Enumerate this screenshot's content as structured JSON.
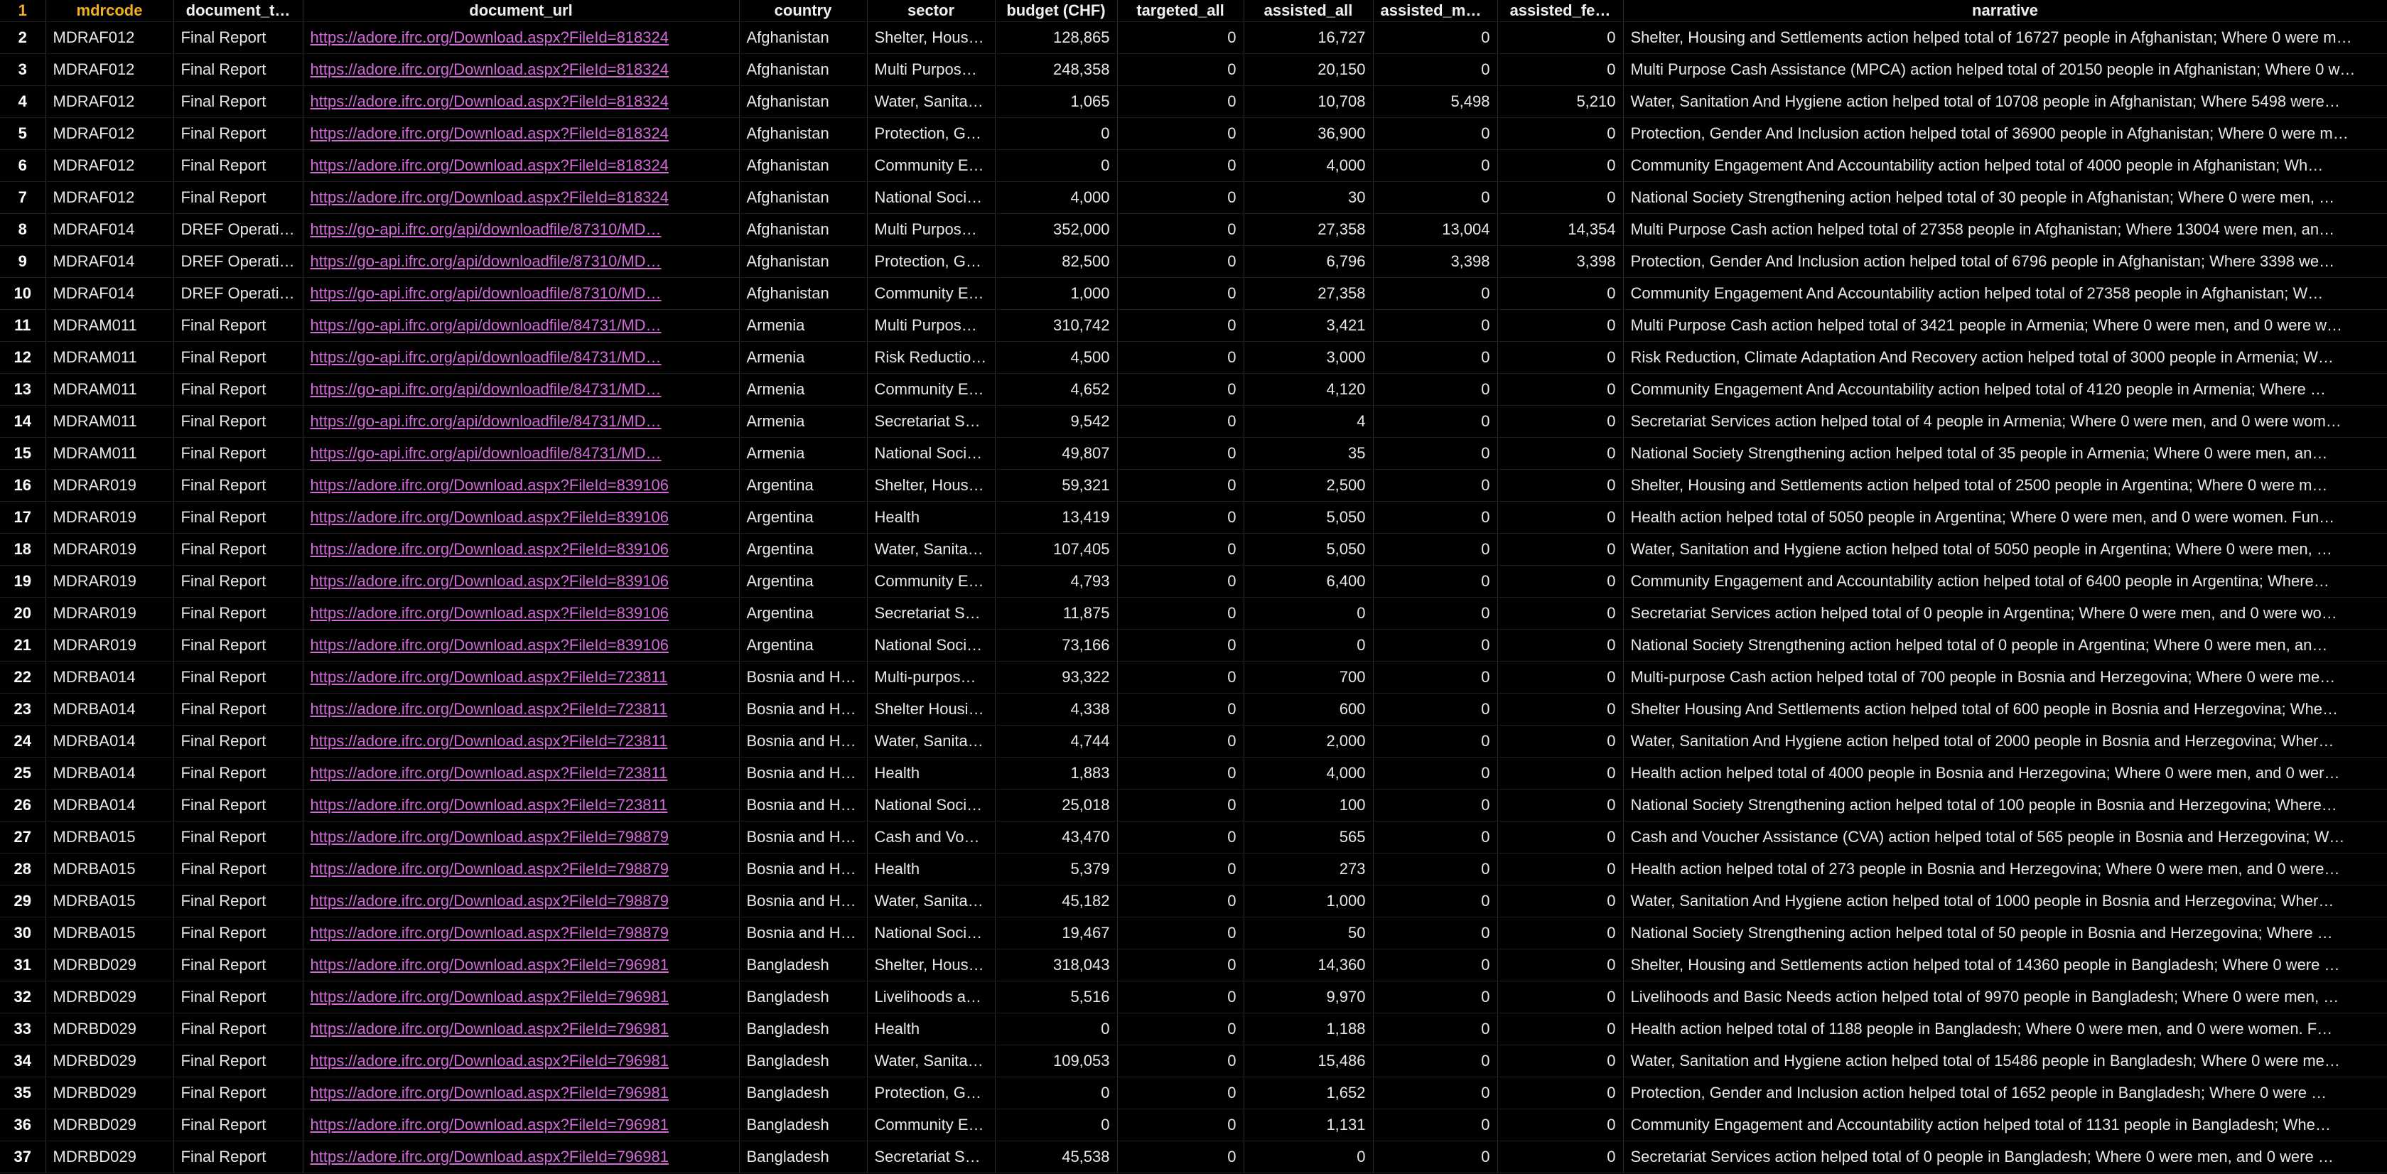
{
  "columns": [
    {
      "key": "rownum",
      "label": "1",
      "cls": "rownum"
    },
    {
      "key": "mdrcode",
      "label": "mdrcode",
      "cls": "c1"
    },
    {
      "key": "document_type",
      "label": "document_t…",
      "cls": ""
    },
    {
      "key": "document_url",
      "label": "document_url",
      "cls": "link"
    },
    {
      "key": "country",
      "label": "country",
      "cls": ""
    },
    {
      "key": "sector",
      "label": "sector",
      "cls": ""
    },
    {
      "key": "budget",
      "label": "budget (CHF)",
      "cls": "num"
    },
    {
      "key": "targeted_all",
      "label": "targeted_all",
      "cls": "num"
    },
    {
      "key": "assisted_all",
      "label": "assisted_all",
      "cls": "num"
    },
    {
      "key": "assisted_male",
      "label": "assisted_ma…",
      "cls": "num"
    },
    {
      "key": "assisted_female",
      "label": "assisted_fe…",
      "cls": "num"
    },
    {
      "key": "narrative",
      "label": "narrative",
      "cls": ""
    }
  ],
  "rows": [
    [
      "2",
      "MDRAF012",
      "Final Report",
      "https://adore.ifrc.org/Download.aspx?FileId=818324",
      "Afghanistan",
      "Shelter, Hous…",
      "128,865",
      "0",
      "16,727",
      "0",
      "0",
      "Shelter, Housing and Settlements action helped total of 16727 people in Afghanistan; Where 0 were m…"
    ],
    [
      "3",
      "MDRAF012",
      "Final Report",
      "https://adore.ifrc.org/Download.aspx?FileId=818324",
      "Afghanistan",
      "Multi Purpos…",
      "248,358",
      "0",
      "20,150",
      "0",
      "0",
      "Multi Purpose Cash Assistance (MPCA) action helped total of 20150 people in Afghanistan; Where 0 w…"
    ],
    [
      "4",
      "MDRAF012",
      "Final Report",
      "https://adore.ifrc.org/Download.aspx?FileId=818324",
      "Afghanistan",
      "Water, Sanita…",
      "1,065",
      "0",
      "10,708",
      "5,498",
      "5,210",
      "Water, Sanitation And Hygiene action helped total of 10708 people in Afghanistan; Where 5498 were…"
    ],
    [
      "5",
      "MDRAF012",
      "Final Report",
      "https://adore.ifrc.org/Download.aspx?FileId=818324",
      "Afghanistan",
      "Protection, G…",
      "0",
      "0",
      "36,900",
      "0",
      "0",
      "Protection, Gender And Inclusion action helped total of 36900 people in Afghanistan; Where 0 were m…"
    ],
    [
      "6",
      "MDRAF012",
      "Final Report",
      "https://adore.ifrc.org/Download.aspx?FileId=818324",
      "Afghanistan",
      "Community E…",
      "0",
      "0",
      "4,000",
      "0",
      "0",
      "Community Engagement And Accountability action helped total of 4000 people in Afghanistan; Wh…"
    ],
    [
      "7",
      "MDRAF012",
      "Final Report",
      "https://adore.ifrc.org/Download.aspx?FileId=818324",
      "Afghanistan",
      "National Soci…",
      "4,000",
      "0",
      "30",
      "0",
      "0",
      "National Society Strengthening action helped total of 30 people in Afghanistan; Where 0 were men, …"
    ],
    [
      "8",
      "MDRAF014",
      "DREF Operati…",
      "https://go-api.ifrc.org/api/downloadfile/87310/MD…",
      "Afghanistan",
      "Multi Purpos…",
      "352,000",
      "0",
      "27,358",
      "13,004",
      "14,354",
      "Multi Purpose Cash action helped total of 27358 people in Afghanistan; Where 13004 were men, an…"
    ],
    [
      "9",
      "MDRAF014",
      "DREF Operati…",
      "https://go-api.ifrc.org/api/downloadfile/87310/MD…",
      "Afghanistan",
      "Protection, G…",
      "82,500",
      "0",
      "6,796",
      "3,398",
      "3,398",
      "Protection, Gender And Inclusion action helped total of 6796 people in Afghanistan; Where 3398 we…"
    ],
    [
      "10",
      "MDRAF014",
      "DREF Operati…",
      "https://go-api.ifrc.org/api/downloadfile/87310/MD…",
      "Afghanistan",
      "Community E…",
      "1,000",
      "0",
      "27,358",
      "0",
      "0",
      "Community Engagement And Accountability action helped total of 27358 people in Afghanistan; W…"
    ],
    [
      "11",
      "MDRAM011",
      "Final Report",
      "https://go-api.ifrc.org/api/downloadfile/84731/MD…",
      "Armenia",
      "Multi Purpos…",
      "310,742",
      "0",
      "3,421",
      "0",
      "0",
      "Multi Purpose Cash action helped total of 3421 people in Armenia; Where 0 were men, and 0 were w…"
    ],
    [
      "12",
      "MDRAM011",
      "Final Report",
      "https://go-api.ifrc.org/api/downloadfile/84731/MD…",
      "Armenia",
      "Risk Reductio…",
      "4,500",
      "0",
      "3,000",
      "0",
      "0",
      "Risk Reduction, Climate Adaptation And Recovery action helped total of 3000 people in Armenia; W…"
    ],
    [
      "13",
      "MDRAM011",
      "Final Report",
      "https://go-api.ifrc.org/api/downloadfile/84731/MD…",
      "Armenia",
      "Community E…",
      "4,652",
      "0",
      "4,120",
      "0",
      "0",
      "Community Engagement And Accountability action helped total of 4120 people in Armenia; Where …"
    ],
    [
      "14",
      "MDRAM011",
      "Final Report",
      "https://go-api.ifrc.org/api/downloadfile/84731/MD…",
      "Armenia",
      "Secretariat S…",
      "9,542",
      "0",
      "4",
      "0",
      "0",
      "Secretariat Services action helped total of 4 people in Armenia; Where 0 were men, and 0 were wom…"
    ],
    [
      "15",
      "MDRAM011",
      "Final Report",
      "https://go-api.ifrc.org/api/downloadfile/84731/MD…",
      "Armenia",
      "National Soci…",
      "49,807",
      "0",
      "35",
      "0",
      "0",
      "National Society Strengthening action helped total of 35 people in Armenia; Where 0 were men, an…"
    ],
    [
      "16",
      "MDRAR019",
      "Final Report",
      "https://adore.ifrc.org/Download.aspx?FileId=839106",
      "Argentina",
      "Shelter, Hous…",
      "59,321",
      "0",
      "2,500",
      "0",
      "0",
      "Shelter, Housing and Settlements action helped total of 2500 people in Argentina; Where 0 were m…"
    ],
    [
      "17",
      "MDRAR019",
      "Final Report",
      "https://adore.ifrc.org/Download.aspx?FileId=839106",
      "Argentina",
      "Health",
      "13,419",
      "0",
      "5,050",
      "0",
      "0",
      "Health action helped total of 5050 people in Argentina; Where 0 were men, and 0 were women. Fun…"
    ],
    [
      "18",
      "MDRAR019",
      "Final Report",
      "https://adore.ifrc.org/Download.aspx?FileId=839106",
      "Argentina",
      "Water, Sanita…",
      "107,405",
      "0",
      "5,050",
      "0",
      "0",
      "Water, Sanitation and Hygiene action helped total of 5050 people in Argentina; Where 0 were men, …"
    ],
    [
      "19",
      "MDRAR019",
      "Final Report",
      "https://adore.ifrc.org/Download.aspx?FileId=839106",
      "Argentina",
      "Community E…",
      "4,793",
      "0",
      "6,400",
      "0",
      "0",
      "Community Engagement and Accountability action helped total of 6400 people in Argentina; Where…"
    ],
    [
      "20",
      "MDRAR019",
      "Final Report",
      "https://adore.ifrc.org/Download.aspx?FileId=839106",
      "Argentina",
      "Secretariat S…",
      "11,875",
      "0",
      "0",
      "0",
      "0",
      "Secretariat Services action helped total of 0 people in Argentina; Where 0 were men, and 0 were wo…"
    ],
    [
      "21",
      "MDRAR019",
      "Final Report",
      "https://adore.ifrc.org/Download.aspx?FileId=839106",
      "Argentina",
      "National Soci…",
      "73,166",
      "0",
      "0",
      "0",
      "0",
      "National Society Strengthening action helped total of 0 people in Argentina; Where 0 were men, an…"
    ],
    [
      "22",
      "MDRBA014",
      "Final Report",
      "https://adore.ifrc.org/Download.aspx?FileId=723811",
      "Bosnia and H…",
      "Multi-purpos…",
      "93,322",
      "0",
      "700",
      "0",
      "0",
      "Multi-purpose Cash action helped total of 700 people in Bosnia and Herzegovina; Where 0 were me…"
    ],
    [
      "23",
      "MDRBA014",
      "Final Report",
      "https://adore.ifrc.org/Download.aspx?FileId=723811",
      "Bosnia and H…",
      "Shelter Housi…",
      "4,338",
      "0",
      "600",
      "0",
      "0",
      "Shelter Housing And Settlements action helped total of 600 people in Bosnia and Herzegovina; Whe…"
    ],
    [
      "24",
      "MDRBA014",
      "Final Report",
      "https://adore.ifrc.org/Download.aspx?FileId=723811",
      "Bosnia and H…",
      "Water, Sanita…",
      "4,744",
      "0",
      "2,000",
      "0",
      "0",
      "Water, Sanitation And Hygiene action helped total of 2000 people in Bosnia and Herzegovina; Wher…"
    ],
    [
      "25",
      "MDRBA014",
      "Final Report",
      "https://adore.ifrc.org/Download.aspx?FileId=723811",
      "Bosnia and H…",
      "Health",
      "1,883",
      "0",
      "4,000",
      "0",
      "0",
      "Health action helped total of 4000 people in Bosnia and Herzegovina; Where 0 were men, and 0 wer…"
    ],
    [
      "26",
      "MDRBA014",
      "Final Report",
      "https://adore.ifrc.org/Download.aspx?FileId=723811",
      "Bosnia and H…",
      "National Soci…",
      "25,018",
      "0",
      "100",
      "0",
      "0",
      "National Society Strengthening action helped total of 100 people in Bosnia and Herzegovina; Where…"
    ],
    [
      "27",
      "MDRBA015",
      "Final Report",
      "https://adore.ifrc.org/Download.aspx?FileId=798879",
      "Bosnia and H…",
      "Cash and Vo…",
      "43,470",
      "0",
      "565",
      "0",
      "0",
      "Cash and Voucher Assistance (CVA) action helped total of 565 people in Bosnia and Herzegovina; W…"
    ],
    [
      "28",
      "MDRBA015",
      "Final Report",
      "https://adore.ifrc.org/Download.aspx?FileId=798879",
      "Bosnia and H…",
      "Health",
      "5,379",
      "0",
      "273",
      "0",
      "0",
      "Health action helped total of 273 people in Bosnia and Herzegovina; Where 0 were men, and 0 were…"
    ],
    [
      "29",
      "MDRBA015",
      "Final Report",
      "https://adore.ifrc.org/Download.aspx?FileId=798879",
      "Bosnia and H…",
      "Water, Sanita…",
      "45,182",
      "0",
      "1,000",
      "0",
      "0",
      "Water, Sanitation And Hygiene action helped total of 1000 people in Bosnia and Herzegovina; Wher…"
    ],
    [
      "30",
      "MDRBA015",
      "Final Report",
      "https://adore.ifrc.org/Download.aspx?FileId=798879",
      "Bosnia and H…",
      "National Soci…",
      "19,467",
      "0",
      "50",
      "0",
      "0",
      "National Society Strengthening action helped total of 50 people in Bosnia and Herzegovina; Where …"
    ],
    [
      "31",
      "MDRBD029",
      "Final Report",
      "https://adore.ifrc.org/Download.aspx?FileId=796981",
      "Bangladesh",
      "Shelter, Hous…",
      "318,043",
      "0",
      "14,360",
      "0",
      "0",
      "Shelter, Housing and Settlements action helped total of 14360 people in Bangladesh; Where 0 were …"
    ],
    [
      "32",
      "MDRBD029",
      "Final Report",
      "https://adore.ifrc.org/Download.aspx?FileId=796981",
      "Bangladesh",
      "Livelihoods a…",
      "5,516",
      "0",
      "9,970",
      "0",
      "0",
      "Livelihoods and Basic Needs action helped total of 9970 people in Bangladesh; Where 0 were men, …"
    ],
    [
      "33",
      "MDRBD029",
      "Final Report",
      "https://adore.ifrc.org/Download.aspx?FileId=796981",
      "Bangladesh",
      "Health",
      "0",
      "0",
      "1,188",
      "0",
      "0",
      "Health action helped total of 1188 people in Bangladesh; Where 0 were men, and 0 were women. F…"
    ],
    [
      "34",
      "MDRBD029",
      "Final Report",
      "https://adore.ifrc.org/Download.aspx?FileId=796981",
      "Bangladesh",
      "Water, Sanita…",
      "109,053",
      "0",
      "15,486",
      "0",
      "0",
      "Water, Sanitation and Hygiene action helped total of 15486 people in Bangladesh; Where 0 were me…"
    ],
    [
      "35",
      "MDRBD029",
      "Final Report",
      "https://adore.ifrc.org/Download.aspx?FileId=796981",
      "Bangladesh",
      "Protection, G…",
      "0",
      "0",
      "1,652",
      "0",
      "0",
      "Protection, Gender and Inclusion action helped total of 1652 people in Bangladesh; Where 0 were …"
    ],
    [
      "36",
      "MDRBD029",
      "Final Report",
      "https://adore.ifrc.org/Download.aspx?FileId=796981",
      "Bangladesh",
      "Community E…",
      "0",
      "0",
      "1,131",
      "0",
      "0",
      "Community Engagement and Accountability action helped total of 1131 people in Bangladesh; Whe…"
    ],
    [
      "37",
      "MDRBD029",
      "Final Report",
      "https://adore.ifrc.org/Download.aspx?FileId=796981",
      "Bangladesh",
      "Secretariat S…",
      "45,538",
      "0",
      "0",
      "0",
      "0",
      "Secretariat Services action helped total of 0 people in Bangladesh; Where 0 were men, and 0 were …"
    ]
  ]
}
